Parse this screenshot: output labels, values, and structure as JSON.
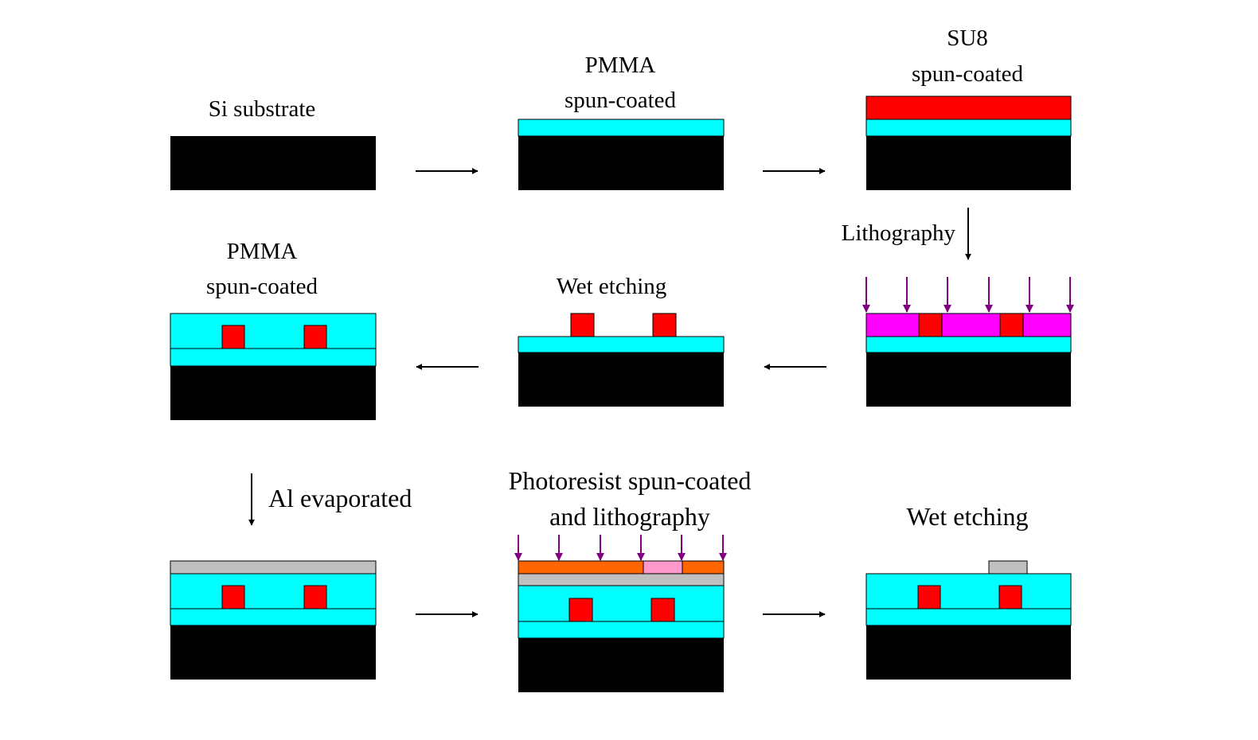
{
  "colors": {
    "substrate": "#000000",
    "pmma": "#00ffff",
    "su8": "#ff0000",
    "exposed_su8": "#ff00ff",
    "aluminum": "#c0c0c0",
    "photoresist": "#ff6600",
    "exposed_photoresist": "#ff99cc",
    "uv_arrow": "#800080",
    "process_arrow": "#000000"
  },
  "steps": {
    "s1": {
      "label": "Si substrate"
    },
    "s2": {
      "label_line1": "PMMA",
      "label_line2": "spun-coated"
    },
    "s3": {
      "label_line1": "SU8",
      "label_line2": "spun-coated"
    },
    "s4": {
      "label_line1": "PMMA",
      "label_line2": "spun-coated"
    },
    "s5": {
      "label": "Wet etching"
    },
    "s7": {
      "label_line1": "Photoresist spun-coated",
      "label_line2": "and lithography"
    },
    "s8": {
      "label": "Wet etching"
    }
  },
  "transitions": {
    "lithography": "Lithography",
    "al_evaporated": "Al evaporated"
  }
}
